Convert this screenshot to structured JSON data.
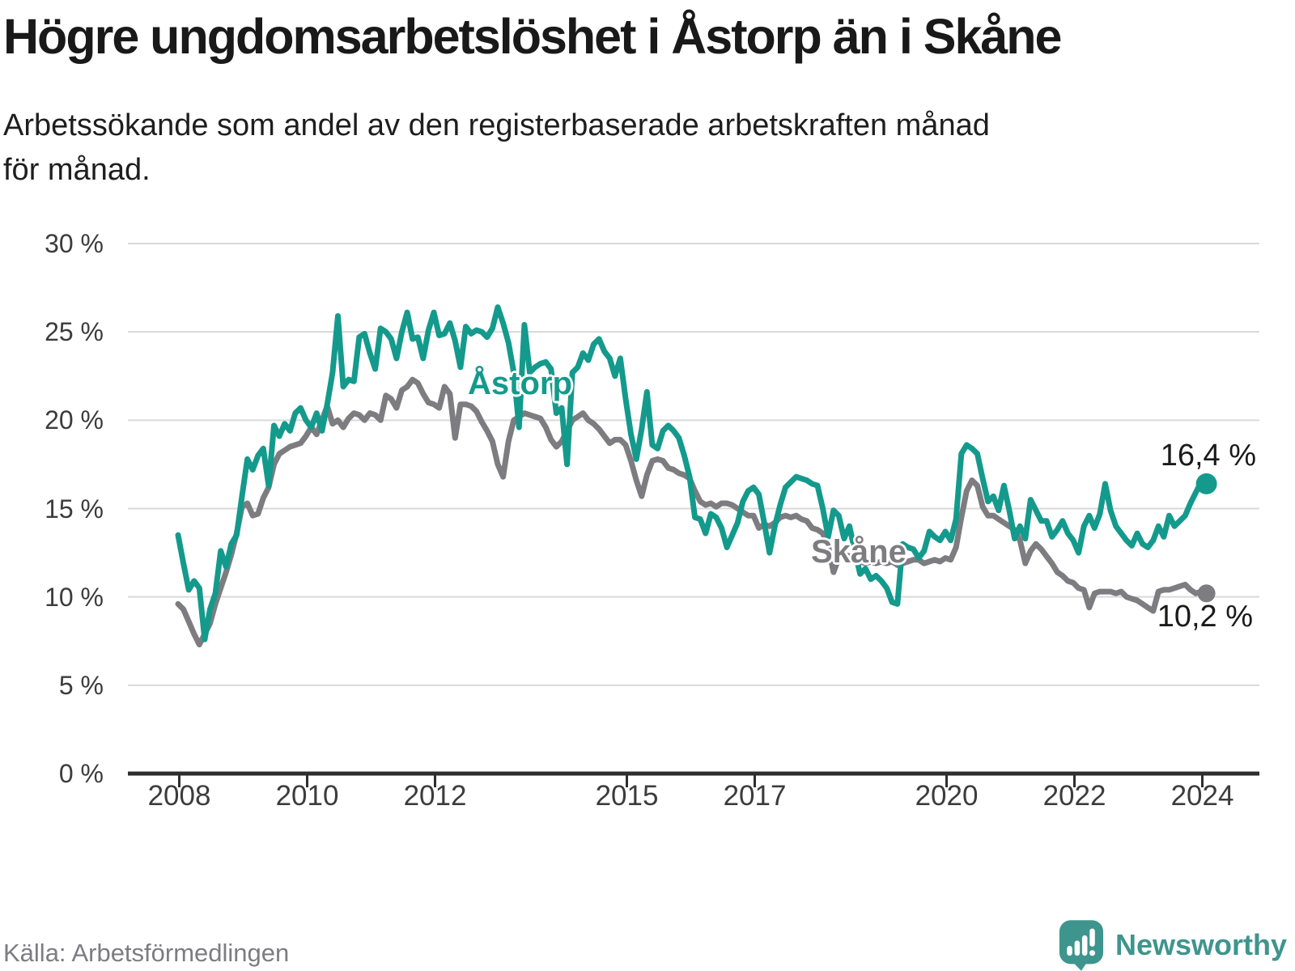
{
  "header": {
    "title": "Högre ungdomsarbetslöshet i Åstorp än i Skåne",
    "subtitle_line1": "Arbetssökande som andel av den registerbaserade arbetskraften månad",
    "subtitle_line2": "för månad."
  },
  "footer": {
    "source": "Källa: Arbetsförmedlingen",
    "brand_name": "Newsworthy",
    "brand_icon": "newsworthy-speech-bubble-bar-chart-icon"
  },
  "colors": {
    "astorp": "#149a8c",
    "skane": "#7d7c81",
    "grid": "#d9d9d9",
    "axis": "#2e2e2e",
    "axis_text": "#3c3c3c",
    "value_text": "#1a1a1a",
    "brand": "#3e958d",
    "background": "#ffffff"
  },
  "chart_data": {
    "type": "line",
    "title": "Högre ungdomsarbetslöshet i Åstorp än i Skåne",
    "subtitle": "Arbetssökande som andel av den registerbaserade arbetskraften månad för månad.",
    "x_unit": "month",
    "x_start_year": 2008,
    "x_end": "2024-02",
    "ylim": [
      0,
      30
    ],
    "grid": true,
    "x_axis": {
      "tick_years": [
        2008,
        2010,
        2012,
        2015,
        2017,
        2020,
        2022,
        2024
      ]
    },
    "y_axis": {
      "ticks": [
        {
          "value": 0,
          "label": "0 %"
        },
        {
          "value": 5,
          "label": "5 %"
        },
        {
          "value": 10,
          "label": "10 %"
        },
        {
          "value": 15,
          "label": "15 %"
        },
        {
          "value": 20,
          "label": "20 %"
        },
        {
          "value": 25,
          "label": "25 %"
        },
        {
          "value": 30,
          "label": "30 %"
        }
      ]
    },
    "series": [
      {
        "name": "Åstorp",
        "color": "#149a8c",
        "end_label": "16,4 %",
        "end_value": 16.4,
        "values": [
          13.5,
          11.9,
          10.4,
          10.9,
          10.5,
          7.6,
          9.3,
          10.2,
          12.6,
          11.7,
          13.0,
          13.5,
          15.7,
          17.8,
          17.2,
          18.0,
          18.4,
          16.3,
          19.7,
          19.1,
          19.8,
          19.4,
          20.4,
          20.7,
          20.0,
          19.6,
          20.4,
          19.4,
          20.9,
          22.7,
          25.9,
          21.9,
          22.3,
          22.2,
          24.7,
          24.9,
          23.8,
          22.9,
          25.2,
          25.0,
          24.6,
          23.5,
          25.0,
          26.1,
          24.6,
          24.7,
          23.5,
          25.1,
          26.1,
          24.8,
          24.9,
          25.5,
          24.5,
          23.0,
          25.3,
          24.9,
          25.1,
          25.0,
          24.7,
          25.2,
          26.4,
          25.5,
          24.4,
          22.7,
          19.6,
          25.4,
          22.7,
          23.0,
          23.2,
          23.3,
          22.9,
          20.4,
          20.7,
          17.5,
          22.7,
          23.0,
          23.8,
          23.4,
          24.3,
          24.6,
          23.9,
          23.5,
          22.5,
          23.5,
          21.2,
          19.2,
          17.8,
          19.5,
          21.6,
          18.6,
          18.4,
          19.4,
          19.7,
          19.4,
          19.0,
          18.0,
          16.8,
          14.5,
          14.4,
          13.6,
          14.7,
          14.5,
          13.9,
          12.8,
          13.5,
          14.2,
          15.4,
          16.0,
          16.2,
          15.8,
          14.2,
          12.5,
          14.0,
          15.2,
          16.2,
          16.5,
          16.8,
          16.7,
          16.6,
          16.4,
          16.3,
          15.0,
          13.4,
          14.9,
          14.6,
          13.3,
          14.0,
          12.6,
          11.3,
          11.6,
          11.0,
          11.2,
          10.9,
          10.5,
          9.7,
          9.6,
          13.0,
          12.8,
          12.7,
          12.2,
          12.6,
          13.7,
          13.4,
          13.2,
          13.7,
          13.2,
          14.4,
          18.1,
          18.6,
          18.4,
          18.1,
          16.7,
          15.4,
          15.7,
          14.9,
          16.3,
          14.9,
          13.3,
          14.0,
          13.3,
          15.5,
          14.9,
          14.3,
          14.3,
          13.4,
          13.8,
          14.3,
          13.6,
          13.2,
          12.5,
          14.0,
          14.6,
          13.9,
          14.7,
          16.4,
          14.9,
          14.0,
          13.6,
          13.2,
          12.9,
          13.6,
          13.0,
          12.8,
          13.2,
          14.0,
          13.4,
          14.6,
          14.0,
          14.3,
          14.6,
          15.3,
          15.9,
          16.5,
          16.4
        ]
      },
      {
        "name": "Skåne",
        "color": "#7d7c81",
        "end_label": "10,2 %",
        "end_value": 10.2,
        "values": [
          9.6,
          9.3,
          8.6,
          7.9,
          7.3,
          7.9,
          8.5,
          9.6,
          10.5,
          11.4,
          12.4,
          13.6,
          15.1,
          15.3,
          14.6,
          14.7,
          15.6,
          16.2,
          17.5,
          18.1,
          18.3,
          18.5,
          18.6,
          18.7,
          19.1,
          19.6,
          19.2,
          20.0,
          20.8,
          19.8,
          20.0,
          19.6,
          20.1,
          20.4,
          20.3,
          20.0,
          20.4,
          20.3,
          20.0,
          21.4,
          21.2,
          20.7,
          21.7,
          21.9,
          22.3,
          22.1,
          21.5,
          21.0,
          20.9,
          20.7,
          21.9,
          21.5,
          19.0,
          20.9,
          20.9,
          20.8,
          20.5,
          19.9,
          19.4,
          18.8,
          17.5,
          16.8,
          18.8,
          20.0,
          20.2,
          20.4,
          20.3,
          20.2,
          20.1,
          19.6,
          18.9,
          18.5,
          18.8,
          19.4,
          20.0,
          20.2,
          20.4,
          20.0,
          19.8,
          19.5,
          19.1,
          18.7,
          18.9,
          18.9,
          18.6,
          17.7,
          16.6,
          15.7,
          16.9,
          17.7,
          17.8,
          17.7,
          17.3,
          17.2,
          17.0,
          16.9,
          16.7,
          16.0,
          15.4,
          15.2,
          15.3,
          15.1,
          15.3,
          15.3,
          15.2,
          15.0,
          14.8,
          14.6,
          14.6,
          13.9,
          14.1,
          14.0,
          14.2,
          14.5,
          14.6,
          14.5,
          14.6,
          14.4,
          14.3,
          13.9,
          13.8,
          13.6,
          12.9,
          11.4,
          12.2,
          12.4,
          12.3,
          12.1,
          12.0,
          11.9,
          12.0,
          11.9,
          12.0,
          11.9,
          12.0,
          11.8,
          11.9,
          12.0,
          12.1,
          12.1,
          11.9,
          12.0,
          12.1,
          12.0,
          12.2,
          12.1,
          12.8,
          14.5,
          16.0,
          16.6,
          16.3,
          15.1,
          14.6,
          14.6,
          14.4,
          14.2,
          14.0,
          13.8,
          13.2,
          11.9,
          12.6,
          13.0,
          12.7,
          12.3,
          11.9,
          11.4,
          11.2,
          10.9,
          10.8,
          10.5,
          10.4,
          9.4,
          10.2,
          10.3,
          10.3,
          10.3,
          10.2,
          10.3,
          10.0,
          9.9,
          9.8,
          9.6,
          9.4,
          9.2,
          10.3,
          10.4,
          10.4,
          10.5,
          10.6,
          10.7,
          10.4,
          10.2,
          10.3,
          10.2
        ]
      }
    ]
  }
}
